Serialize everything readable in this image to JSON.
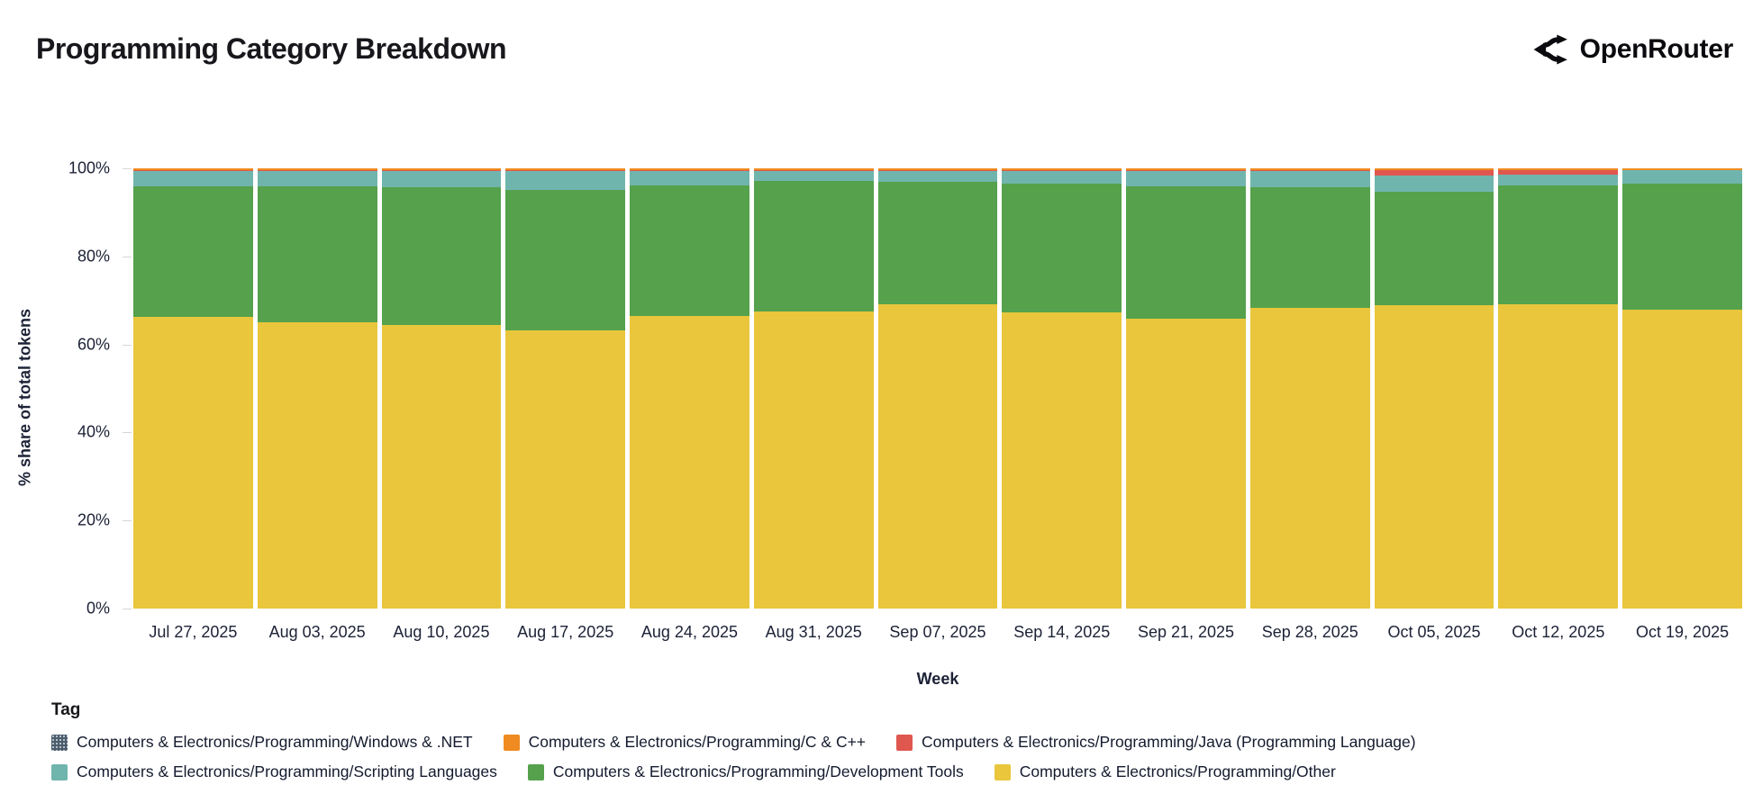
{
  "header": {
    "title": "Programming Category Breakdown",
    "brand": "OpenRouter",
    "brand_icon": "openrouter-merge-arrows-icon",
    "brand_color": "#0b0b0f"
  },
  "chart_data": {
    "type": "bar",
    "variant": "stacked-100-percent",
    "title": "Programming Category Breakdown",
    "xlabel": "Week",
    "ylabel": "% share of total tokens",
    "ylim": [
      0,
      100
    ],
    "yticks": [
      0,
      20,
      40,
      60,
      80,
      100
    ],
    "ytick_labels": [
      "0%",
      "20%",
      "40%",
      "60%",
      "80%",
      "100%"
    ],
    "grid": false,
    "legend_title": "Tag",
    "legend_position": "bottom",
    "categories": [
      "Jul 27, 2025",
      "Aug 03, 2025",
      "Aug 10, 2025",
      "Aug 17, 2025",
      "Aug 24, 2025",
      "Aug 31, 2025",
      "Sep 07, 2025",
      "Sep 14, 2025",
      "Sep 21, 2025",
      "Sep 28, 2025",
      "Oct 05, 2025",
      "Oct 12, 2025",
      "Oct 19, 2025"
    ],
    "series": [
      {
        "name": "Computers & Electronics/Programming/Other",
        "color": "#e9c63c",
        "stack_order": "bottom",
        "values": [
          66.2,
          65.0,
          64.4,
          63.2,
          66.4,
          67.4,
          69.1,
          67.3,
          65.8,
          68.3,
          68.9,
          69.1,
          67.8
        ]
      },
      {
        "name": "Computers & Electronics/Programming/Development Tools",
        "color": "#55a14c",
        "values": [
          29.7,
          30.9,
          31.3,
          31.9,
          29.7,
          29.7,
          27.8,
          29.2,
          30.1,
          27.4,
          25.8,
          27.0,
          28.7
        ]
      },
      {
        "name": "Computers & Electronics/Programming/Scripting Languages",
        "color": "#70b5ad",
        "values": [
          3.5,
          3.5,
          3.7,
          4.3,
          3.3,
          2.3,
          2.5,
          2.9,
          3.5,
          3.7,
          3.6,
          2.5,
          3.0
        ]
      },
      {
        "name": "Computers & Electronics/Programming/Java (Programming Language)",
        "color": "#df574e",
        "values": [
          0.1,
          0.1,
          0.1,
          0.1,
          0.1,
          0.1,
          0.1,
          0.1,
          0.1,
          0.1,
          1.3,
          1.0,
          0.1
        ]
      },
      {
        "name": "Computers & Electronics/Programming/C & C++",
        "color": "#ef8b20",
        "values": [
          0.45,
          0.45,
          0.45,
          0.45,
          0.45,
          0.45,
          0.45,
          0.45,
          0.45,
          0.45,
          0.35,
          0.35,
          0.35
        ]
      },
      {
        "name": "Computers & Electronics/Programming/Windows & .NET",
        "color": "#4d5d6c",
        "swatch_style": "hatched",
        "stack_order": "top",
        "values": [
          0.05,
          0.05,
          0.05,
          0.05,
          0.05,
          0.05,
          0.05,
          0.05,
          0.05,
          0.05,
          0.05,
          0.05,
          0.05
        ]
      }
    ],
    "legend_display_order": [
      "Computers & Electronics/Programming/Windows & .NET",
      "Computers & Electronics/Programming/C & C++",
      "Computers & Electronics/Programming/Java (Programming Language)",
      "Computers & Electronics/Programming/Scripting Languages",
      "Computers & Electronics/Programming/Development Tools",
      "Computers & Electronics/Programming/Other"
    ]
  }
}
